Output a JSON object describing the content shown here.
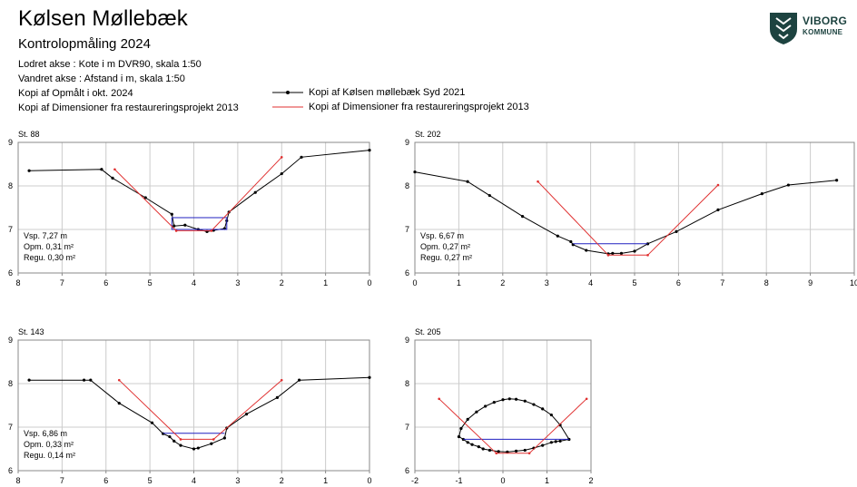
{
  "header": {
    "title": "Kølsen Møllebæk",
    "subtitle": "Kontrolopmåling 2024",
    "lines": [
      "Lodret akse : Kote i m DVR90, skala 1:50",
      "Vandret akse : Afstand i m,  skala 1:50",
      "Kopi af Opmålt i okt. 2024",
      "Kopi af Dimensioner fra restaureringsprojekt 2013"
    ]
  },
  "legend": {
    "black_label": "Kopi af Kølsen møllebæk Syd 2021",
    "red_label": "Kopi af Dimensioner fra restaureringsprojekt 2013"
  },
  "logo": {
    "line1": "VIBORG",
    "line2": "KOMMUNE"
  },
  "colors": {
    "survey": "#000000",
    "design": "#e03030",
    "water": "#2020c0",
    "grid": "#cccccc"
  },
  "chart_data": [
    {
      "type": "line",
      "title": "St. 88",
      "x_ticks": [
        8,
        7,
        6,
        5,
        4,
        3,
        2,
        1,
        0
      ],
      "y_ticks": [
        9,
        8,
        7,
        6
      ],
      "xlim": [
        8,
        0
      ],
      "ylim": [
        6,
        9
      ],
      "info": [
        "Vsp. 7,27 m",
        "Opm. 0,31 m²",
        "Regu. 0,30 m²"
      ],
      "series": [
        {
          "role": "survey",
          "x": [
            7.75,
            6.1,
            5.85,
            5.1,
            4.5,
            4.45,
            4.2,
            3.9,
            3.7,
            3.55,
            3.3,
            3.25,
            3.2,
            2.6,
            2.0,
            1.55,
            0.0
          ],
          "y": [
            8.35,
            8.38,
            8.18,
            7.73,
            7.35,
            7.08,
            7.1,
            7.0,
            6.95,
            6.98,
            7.02,
            7.2,
            7.4,
            7.85,
            8.28,
            8.66,
            8.82
          ]
        },
        {
          "role": "water",
          "x": [
            4.5,
            3.25,
            3.25,
            4.5,
            4.5
          ],
          "y": [
            7.27,
            7.27,
            7.0,
            7.0,
            7.27
          ]
        },
        {
          "role": "design",
          "x": [
            5.8,
            4.4,
            3.6,
            2.0
          ],
          "y": [
            8.38,
            6.97,
            6.97,
            8.66
          ]
        }
      ]
    },
    {
      "type": "line",
      "title": "St. 202",
      "x_ticks": [
        0,
        1,
        2,
        3,
        4,
        5,
        6,
        7,
        8,
        9,
        10
      ],
      "y_ticks": [
        9,
        8,
        7,
        6
      ],
      "xlim": [
        0,
        10
      ],
      "ylim": [
        6,
        9
      ],
      "info": [
        "Vsp. 6,67 m",
        "Opm. 0,27 m²",
        "Regu. 0,27 m²"
      ],
      "series": [
        {
          "role": "survey",
          "x": [
            0.0,
            1.2,
            1.7,
            2.45,
            3.25,
            3.55,
            3.6,
            3.9,
            4.4,
            4.5,
            4.7,
            5.0,
            5.3,
            5.95,
            6.9,
            7.9,
            8.5,
            9.6
          ],
          "y": [
            8.32,
            8.1,
            7.78,
            7.3,
            6.85,
            6.72,
            6.65,
            6.52,
            6.44,
            6.45,
            6.45,
            6.5,
            6.67,
            6.95,
            7.45,
            7.82,
            8.02,
            8.13
          ]
        },
        {
          "role": "water",
          "x": [
            3.6,
            5.3
          ],
          "y": [
            6.67,
            6.67
          ]
        },
        {
          "role": "design",
          "x": [
            2.8,
            4.4,
            5.3,
            6.9
          ],
          "y": [
            8.1,
            6.41,
            6.41,
            8.02
          ]
        }
      ]
    },
    {
      "type": "line",
      "title": "St. 143",
      "x_ticks": [
        8,
        7,
        6,
        5,
        4,
        3,
        2,
        1,
        0
      ],
      "y_ticks": [
        9,
        8,
        7,
        6
      ],
      "xlim": [
        8,
        0
      ],
      "ylim": [
        6,
        9
      ],
      "info": [
        "Vsp. 6,86 m",
        "Opm. 0,33 m²",
        "Regu. 0,14 m²"
      ],
      "series": [
        {
          "role": "survey",
          "x": [
            7.75,
            6.5,
            6.35,
            5.7,
            4.95,
            4.7,
            4.55,
            4.45,
            4.3,
            4.0,
            3.9,
            3.6,
            3.3,
            3.25,
            2.8,
            2.1,
            1.6,
            0.0
          ],
          "y": [
            8.08,
            8.08,
            8.08,
            7.55,
            7.1,
            6.85,
            6.78,
            6.68,
            6.58,
            6.5,
            6.52,
            6.62,
            6.75,
            6.98,
            7.3,
            7.68,
            8.08,
            8.14
          ]
        },
        {
          "role": "water",
          "x": [
            4.7,
            3.3
          ],
          "y": [
            6.86,
            6.86
          ]
        },
        {
          "role": "design",
          "x": [
            5.7,
            4.3,
            3.55,
            2.0
          ],
          "y": [
            8.08,
            6.72,
            6.72,
            8.08
          ]
        }
      ]
    },
    {
      "type": "line",
      "title": "St. 205",
      "x_ticks": [
        -2,
        -1,
        0,
        1,
        2
      ],
      "y_ticks": [
        9,
        8,
        7,
        6
      ],
      "xlim": [
        -2,
        2
      ],
      "ylim": [
        6,
        9
      ],
      "info": [],
      "series": [
        {
          "role": "survey",
          "x": [
            -1.0,
            -0.9,
            -0.8,
            -0.7,
            -0.55,
            -0.45,
            -0.3,
            -0.1,
            0.1,
            0.3,
            0.5,
            0.7,
            0.9,
            1.1,
            1.2,
            1.3,
            1.5
          ],
          "y": [
            6.78,
            6.72,
            6.65,
            6.6,
            6.55,
            6.5,
            6.47,
            6.44,
            6.43,
            6.45,
            6.47,
            6.52,
            6.58,
            6.65,
            6.67,
            6.68,
            6.72
          ]
        },
        {
          "role": "survey",
          "x": [
            -1.0,
            -0.95,
            -0.8,
            -0.6,
            -0.4,
            -0.2,
            0.0,
            0.15,
            0.3,
            0.5,
            0.7,
            0.9,
            1.1,
            1.3,
            1.5
          ],
          "y": [
            6.78,
            6.97,
            7.18,
            7.35,
            7.48,
            7.57,
            7.63,
            7.65,
            7.64,
            7.6,
            7.52,
            7.42,
            7.28,
            7.05,
            6.72
          ]
        },
        {
          "role": "water",
          "x": [
            -0.9,
            1.5
          ],
          "y": [
            6.72,
            6.72
          ]
        },
        {
          "role": "design",
          "x": [
            -1.45,
            -0.15,
            0.6,
            1.9
          ],
          "y": [
            7.65,
            6.4,
            6.4,
            7.65
          ]
        }
      ]
    }
  ]
}
